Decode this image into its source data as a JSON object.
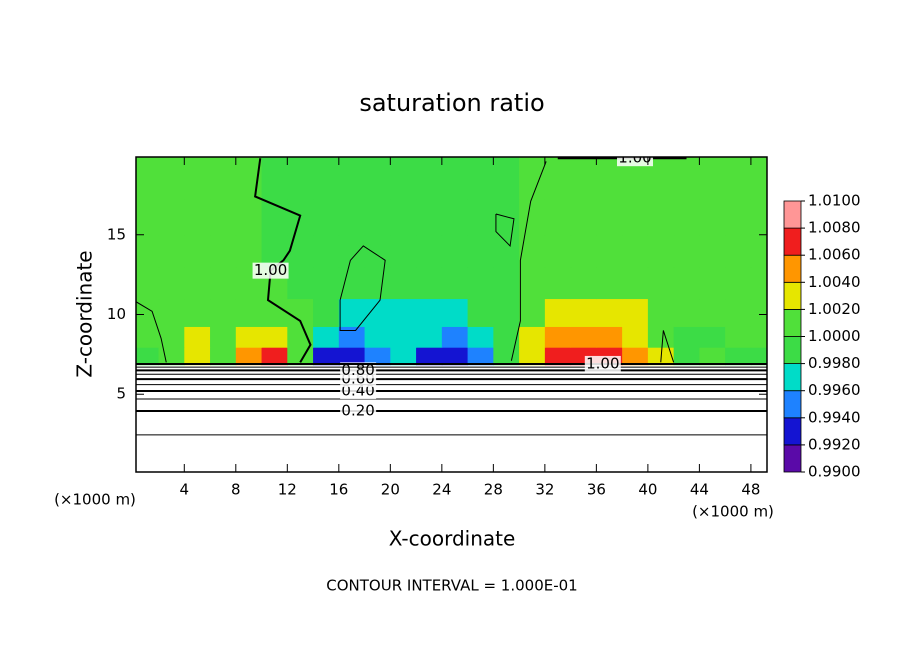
{
  "chart_data": {
    "type": "contour",
    "title": "saturation ratio",
    "x_label": "X-coordinate",
    "y_label": "Z-coordinate",
    "x_unit_label": "(×1000 m)",
    "x_unit_label_right": "(×1000 m)",
    "note": "CONTOUR INTERVAL = 1.000E-01",
    "xlim": [
      0.25,
      49.25
    ],
    "ylim": [
      0.125,
      19.875
    ],
    "xticks": [
      4,
      8,
      12,
      16,
      20,
      24,
      28,
      32,
      36,
      40,
      44,
      48
    ],
    "yticks": [
      5,
      10,
      15
    ],
    "field": {
      "x": [
        1,
        3,
        5,
        7,
        9,
        11,
        13,
        15,
        17,
        19,
        21,
        23,
        25,
        27,
        29,
        31,
        33,
        35,
        37,
        39,
        41,
        43,
        45,
        47,
        49
      ],
      "z": [
        7.4,
        8.5,
        10,
        12,
        14,
        16,
        18.5
      ],
      "values": [
        [
          0.9995,
          1.0005,
          1.002,
          1.0005,
          1.005,
          1.006,
          1.001,
          0.993,
          0.992,
          0.995,
          0.997,
          0.993,
          0.992,
          0.995,
          0.999,
          1.003,
          1.006,
          1.007,
          1.007,
          1.005,
          1.002,
          0.999,
          1.0,
          0.999,
          0.999
        ],
        [
          1.0005,
          1.001,
          1.002,
          1.001,
          1.002,
          1.003,
          1.0005,
          0.996,
          0.995,
          0.996,
          0.997,
          0.996,
          0.995,
          0.997,
          0.999,
          1.002,
          1.004,
          1.005,
          1.005,
          1.003,
          1.001,
          0.999,
          0.998,
          1.0005,
          1.0
        ],
        [
          1.0,
          1.001,
          1.001,
          1.0005,
          1.001,
          1.001,
          1.0,
          0.998,
          0.997,
          0.996,
          0.997,
          0.997,
          0.996,
          0.998,
          0.999,
          1.001,
          1.002,
          1.002,
          1.002,
          1.002,
          1.001,
          1.0,
          1.0,
          1.0,
          1.0
        ],
        [
          1.0,
          1.0005,
          1.001,
          1.0005,
          1.0,
          1.0,
          0.9995,
          0.998,
          0.999,
          0.998,
          0.998,
          0.998,
          0.998,
          0.999,
          0.9995,
          1.0,
          1.001,
          1.001,
          1.001,
          1.0005,
          1.0,
          1.0,
          1.0,
          1.0,
          1.0
        ],
        [
          1.0,
          1.0,
          1.0005,
          1.0,
          1.0,
          0.9995,
          0.999,
          0.999,
          0.999,
          0.999,
          0.998,
          0.999,
          0.999,
          0.999,
          0.9995,
          1.0,
          1.0,
          1.0005,
          1.0005,
          1.0,
          1.0,
          1.0,
          1.0,
          1.0,
          1.0
        ],
        [
          1.0,
          1.0,
          1.0,
          1.0,
          1.0,
          0.9995,
          0.9995,
          0.9995,
          0.999,
          0.999,
          0.9995,
          0.999,
          0.999,
          0.9995,
          0.9995,
          1.0,
          1.0,
          1.0,
          1.0,
          1.0,
          1.0,
          1.0,
          1.0,
          1.0,
          1.0
        ],
        [
          1.0005,
          1.0,
          1.0,
          1.0,
          1.0,
          0.9995,
          0.9995,
          0.9995,
          0.9995,
          0.9995,
          0.9995,
          0.9995,
          0.9995,
          0.9995,
          0.9995,
          1.0,
          1.0,
          1.0,
          1.0,
          1.0,
          1.0,
          1.0,
          1.0,
          1.0,
          1.0
        ]
      ]
    },
    "colorbar": {
      "ticks": [
        {
          "value": 0.99,
          "label": "0.9900"
        },
        {
          "value": 0.992,
          "label": "0.9920"
        },
        {
          "value": 0.994,
          "label": "0.9940"
        },
        {
          "value": 0.996,
          "label": "0.9960"
        },
        {
          "value": 0.998,
          "label": "0.9980"
        },
        {
          "value": 1.0,
          "label": "1.0000"
        },
        {
          "value": 1.002,
          "label": "1.0020"
        },
        {
          "value": 1.004,
          "label": "1.0040"
        },
        {
          "value": 1.006,
          "label": "1.0060"
        },
        {
          "value": 1.008,
          "label": "1.0080"
        },
        {
          "value": 1.01,
          "label": "1.0100"
        }
      ],
      "colors": [
        "#5a0aa8",
        "#1414d2",
        "#1e82ff",
        "#00dcc8",
        "#3cdc46",
        "#50e03a",
        "#e6e600",
        "#ff9600",
        "#f01e1e",
        "#ff9696"
      ]
    },
    "contours": [
      {
        "level": 0.1,
        "x": [
          0.25,
          49.25
        ],
        "z": [
          2.45,
          2.45
        ]
      },
      {
        "level": 0.2,
        "label": "0.20",
        "x": [
          0.25,
          17.5,
          49.25
        ],
        "z": [
          3.95,
          3.95,
          3.95
        ]
      },
      {
        "level": 0.3,
        "x": [
          0.25,
          49.25
        ],
        "z": [
          4.7,
          4.7
        ]
      },
      {
        "level": 0.4,
        "label": "0.40",
        "x": [
          0.25,
          17.5,
          49.25
        ],
        "z": [
          5.2,
          5.2,
          5.2
        ]
      },
      {
        "level": 0.5,
        "x": [
          0.25,
          49.25
        ],
        "z": [
          5.6,
          5.6
        ]
      },
      {
        "level": 0.6,
        "label": "0.60",
        "x": [
          0.25,
          17.5,
          49.25
        ],
        "z": [
          5.95,
          5.95,
          5.95
        ]
      },
      {
        "level": 0.7,
        "x": [
          0.25,
          49.25
        ],
        "z": [
          6.25,
          6.25
        ]
      },
      {
        "level": 0.8,
        "label": "0.80",
        "x": [
          0.25,
          17.5,
          49.25
        ],
        "z": [
          6.5,
          6.5,
          6.5
        ]
      },
      {
        "level": 0.9,
        "x": [
          0.25,
          49.25
        ],
        "z": [
          6.7,
          6.7
        ]
      },
      {
        "level": 1.0,
        "label": "1.00",
        "x": [
          0.25,
          20,
          36.5,
          49.25
        ],
        "z": [
          6.9,
          6.9,
          6.9,
          6.9
        ]
      },
      {
        "level": 1.0,
        "label": "1.00",
        "x": [
          9.9,
          9.5,
          13,
          12.2,
          11.7,
          10.7,
          10.5,
          13,
          13.8,
          13
        ],
        "z": [
          19.8,
          17.4,
          16.2,
          14.0,
          13.4,
          12.75,
          10.9,
          9.6,
          8.1,
          7.0
        ]
      },
      {
        "level": 1.0,
        "x": [
          16.9,
          17.9,
          19.6,
          19.2,
          17.3,
          16.1,
          16.1,
          16.9
        ],
        "z": [
          13.4,
          14.3,
          13.4,
          10.9,
          9.0,
          9.0,
          10.9,
          13.4
        ]
      },
      {
        "level": 1.0,
        "x": [
          32.1,
          30.9,
          30.1,
          30.1,
          29.4
        ],
        "z": [
          19.6,
          17.1,
          13.4,
          9.6,
          7.1
        ]
      },
      {
        "level": 1.0,
        "x": [
          28.2,
          29.6,
          29.3,
          28.2,
          28.2
        ],
        "z": [
          16.3,
          16.0,
          14.3,
          15.2,
          16.3
        ]
      },
      {
        "level": 1.0,
        "x": [
          0.25,
          1.5,
          2.2,
          2.6
        ],
        "z": [
          10.8,
          10.2,
          8.5,
          7.0
        ]
      },
      {
        "level": 1.0,
        "x": [
          41,
          41.2,
          42
        ],
        "z": [
          7.0,
          9.0,
          7.0
        ]
      },
      {
        "level": 1.0,
        "label": "1.00",
        "x": [
          33,
          39,
          43
        ],
        "z": [
          19.8,
          19.8,
          19.8
        ]
      }
    ]
  }
}
